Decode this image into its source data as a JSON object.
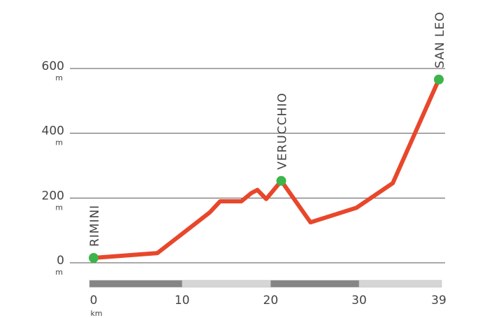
{
  "chart_data": {
    "type": "line",
    "x": [
      0,
      7.2,
      13.1,
      14.3,
      16.7,
      17.8,
      18.5,
      19.5,
      21.2,
      24.5,
      29.7,
      33.8,
      39
    ],
    "series": [
      {
        "values": [
          15,
          30,
          155,
          190,
          190,
          215,
          225,
          197,
          253,
          125,
          170,
          246,
          566
        ],
        "color": "#e8472b"
      }
    ],
    "markers": [
      {
        "label": "RIMINI",
        "x": 0,
        "y": 15
      },
      {
        "label": "VERUCCHIO",
        "x": 21.2,
        "y": 253
      },
      {
        "label": "SAN LEO",
        "x": 39,
        "y": 566
      }
    ],
    "marker_color": "#3cb54a",
    "xlim": [
      0,
      39
    ],
    "ylim": [
      0,
      600
    ],
    "xticks": [
      0,
      10,
      20,
      30,
      39
    ],
    "yticks": [
      0,
      200,
      400,
      600
    ],
    "y_unit": "m",
    "x_unit": "km",
    "grid": true
  }
}
